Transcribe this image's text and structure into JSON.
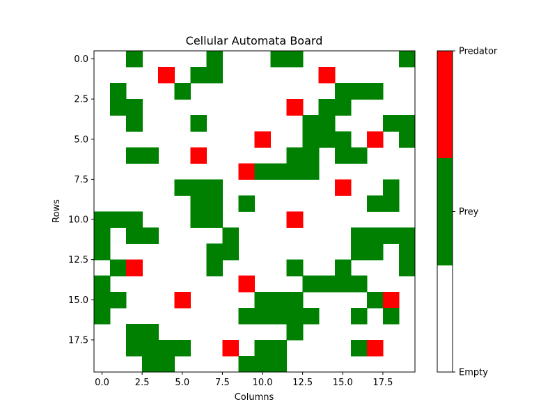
{
  "chart_data": {
    "type": "heatmap",
    "title": "Cellular Automata Board",
    "xlabel": "Columns",
    "ylabel": "Rows",
    "xticks": [
      0.0,
      2.5,
      5.0,
      7.5,
      10.0,
      12.5,
      15.0,
      17.5
    ],
    "yticks": [
      0.0,
      2.5,
      5.0,
      7.5,
      10.0,
      12.5,
      15.0,
      17.5
    ],
    "xtick_labels": [
      "0.0",
      "2.5",
      "5.0",
      "7.5",
      "10.0",
      "12.5",
      "15.0",
      "17.5"
    ],
    "ytick_labels": [
      "0.0",
      "2.5",
      "5.0",
      "7.5",
      "10.0",
      "12.5",
      "15.0",
      "17.5"
    ],
    "xlim": [
      -0.5,
      19.5
    ],
    "ylim": [
      19.5,
      -0.5
    ],
    "states": [
      {
        "value": 0,
        "label": "Empty",
        "color": "#ffffff"
      },
      {
        "value": 1,
        "label": "Prey",
        "color": "#008000"
      },
      {
        "value": 2,
        "label": "Predator",
        "color": "#ff0000"
      }
    ],
    "grid": [
      [
        0,
        0,
        1,
        0,
        0,
        0,
        0,
        1,
        0,
        0,
        0,
        1,
        1,
        0,
        0,
        0,
        0,
        0,
        0,
        1
      ],
      [
        0,
        0,
        0,
        0,
        2,
        0,
        1,
        1,
        0,
        0,
        0,
        0,
        0,
        0,
        2,
        0,
        0,
        0,
        0,
        0
      ],
      [
        0,
        1,
        0,
        0,
        0,
        1,
        0,
        0,
        0,
        0,
        0,
        0,
        0,
        0,
        0,
        1,
        1,
        1,
        0,
        0
      ],
      [
        0,
        1,
        1,
        0,
        0,
        0,
        0,
        0,
        0,
        0,
        0,
        0,
        2,
        0,
        1,
        1,
        0,
        0,
        0,
        0
      ],
      [
        0,
        0,
        1,
        0,
        0,
        0,
        1,
        0,
        0,
        0,
        0,
        0,
        0,
        1,
        1,
        0,
        0,
        0,
        1,
        1
      ],
      [
        0,
        0,
        0,
        0,
        0,
        0,
        0,
        0,
        0,
        0,
        2,
        0,
        0,
        1,
        1,
        1,
        0,
        2,
        0,
        1
      ],
      [
        0,
        0,
        1,
        1,
        0,
        0,
        2,
        0,
        0,
        0,
        0,
        0,
        1,
        1,
        0,
        1,
        1,
        0,
        0,
        0
      ],
      [
        0,
        0,
        0,
        0,
        0,
        0,
        0,
        0,
        0,
        2,
        1,
        1,
        1,
        1,
        0,
        0,
        0,
        0,
        0,
        0
      ],
      [
        0,
        0,
        0,
        0,
        0,
        1,
        1,
        1,
        0,
        0,
        0,
        0,
        0,
        0,
        0,
        2,
        0,
        0,
        1,
        0
      ],
      [
        0,
        0,
        0,
        0,
        0,
        0,
        1,
        1,
        0,
        1,
        0,
        0,
        0,
        0,
        0,
        0,
        0,
        1,
        1,
        0
      ],
      [
        1,
        1,
        1,
        0,
        0,
        0,
        1,
        1,
        0,
        0,
        0,
        0,
        2,
        0,
        0,
        0,
        0,
        0,
        0,
        0
      ],
      [
        1,
        0,
        1,
        1,
        0,
        0,
        0,
        0,
        1,
        0,
        0,
        0,
        0,
        0,
        0,
        0,
        1,
        1,
        1,
        1
      ],
      [
        1,
        0,
        0,
        0,
        0,
        0,
        0,
        1,
        1,
        0,
        0,
        0,
        0,
        0,
        0,
        0,
        1,
        1,
        0,
        1
      ],
      [
        0,
        1,
        2,
        0,
        0,
        0,
        0,
        1,
        0,
        0,
        0,
        0,
        1,
        0,
        0,
        1,
        0,
        0,
        0,
        1
      ],
      [
        1,
        0,
        0,
        0,
        0,
        0,
        0,
        0,
        0,
        2,
        0,
        0,
        0,
        1,
        1,
        1,
        1,
        0,
        0,
        0
      ],
      [
        1,
        1,
        0,
        0,
        0,
        2,
        0,
        0,
        0,
        0,
        1,
        1,
        1,
        0,
        0,
        0,
        0,
        1,
        2,
        0
      ],
      [
        1,
        0,
        0,
        0,
        0,
        0,
        0,
        0,
        0,
        1,
        1,
        1,
        1,
        1,
        0,
        0,
        1,
        0,
        1,
        0
      ],
      [
        0,
        0,
        1,
        1,
        0,
        0,
        0,
        0,
        0,
        0,
        0,
        0,
        1,
        0,
        0,
        0,
        0,
        0,
        0,
        0
      ],
      [
        0,
        0,
        1,
        1,
        1,
        1,
        0,
        0,
        2,
        0,
        1,
        1,
        0,
        0,
        0,
        0,
        1,
        2,
        0,
        0
      ],
      [
        0,
        0,
        0,
        1,
        1,
        0,
        0,
        0,
        0,
        1,
        1,
        1,
        0,
        0,
        0,
        0,
        0,
        0,
        0,
        0
      ]
    ],
    "colorbar": {
      "tick_labels": [
        "Empty",
        "Prey",
        "Predator"
      ]
    }
  }
}
